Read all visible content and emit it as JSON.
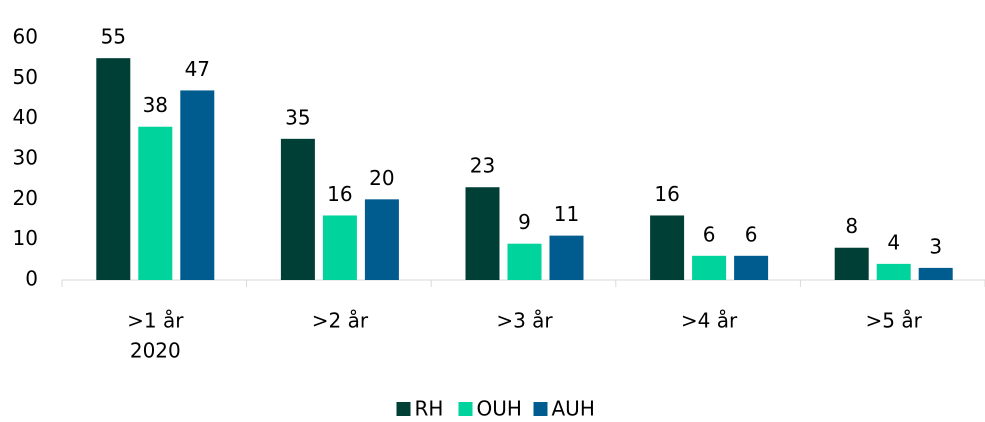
{
  "chart_data": {
    "type": "bar",
    "categories": [
      [
        ">1 år",
        "2020"
      ],
      [
        ">2 år"
      ],
      [
        ">3 år"
      ],
      [
        ">4 år"
      ],
      [
        ">5 år"
      ]
    ],
    "series": [
      {
        "name": "RH",
        "color": "#003f35",
        "values": [
          55,
          35,
          23,
          16,
          8
        ]
      },
      {
        "name": "OUH",
        "color": "#00d39b",
        "values": [
          38,
          16,
          9,
          6,
          4
        ]
      },
      {
        "name": "AUH",
        "color": "#005b8e",
        "values": [
          47,
          20,
          11,
          6,
          3
        ]
      }
    ],
    "ylim": [
      0,
      60
    ],
    "yticks": [
      0,
      10,
      20,
      30,
      40,
      50,
      60
    ],
    "grid": false,
    "legend": "bottom"
  }
}
